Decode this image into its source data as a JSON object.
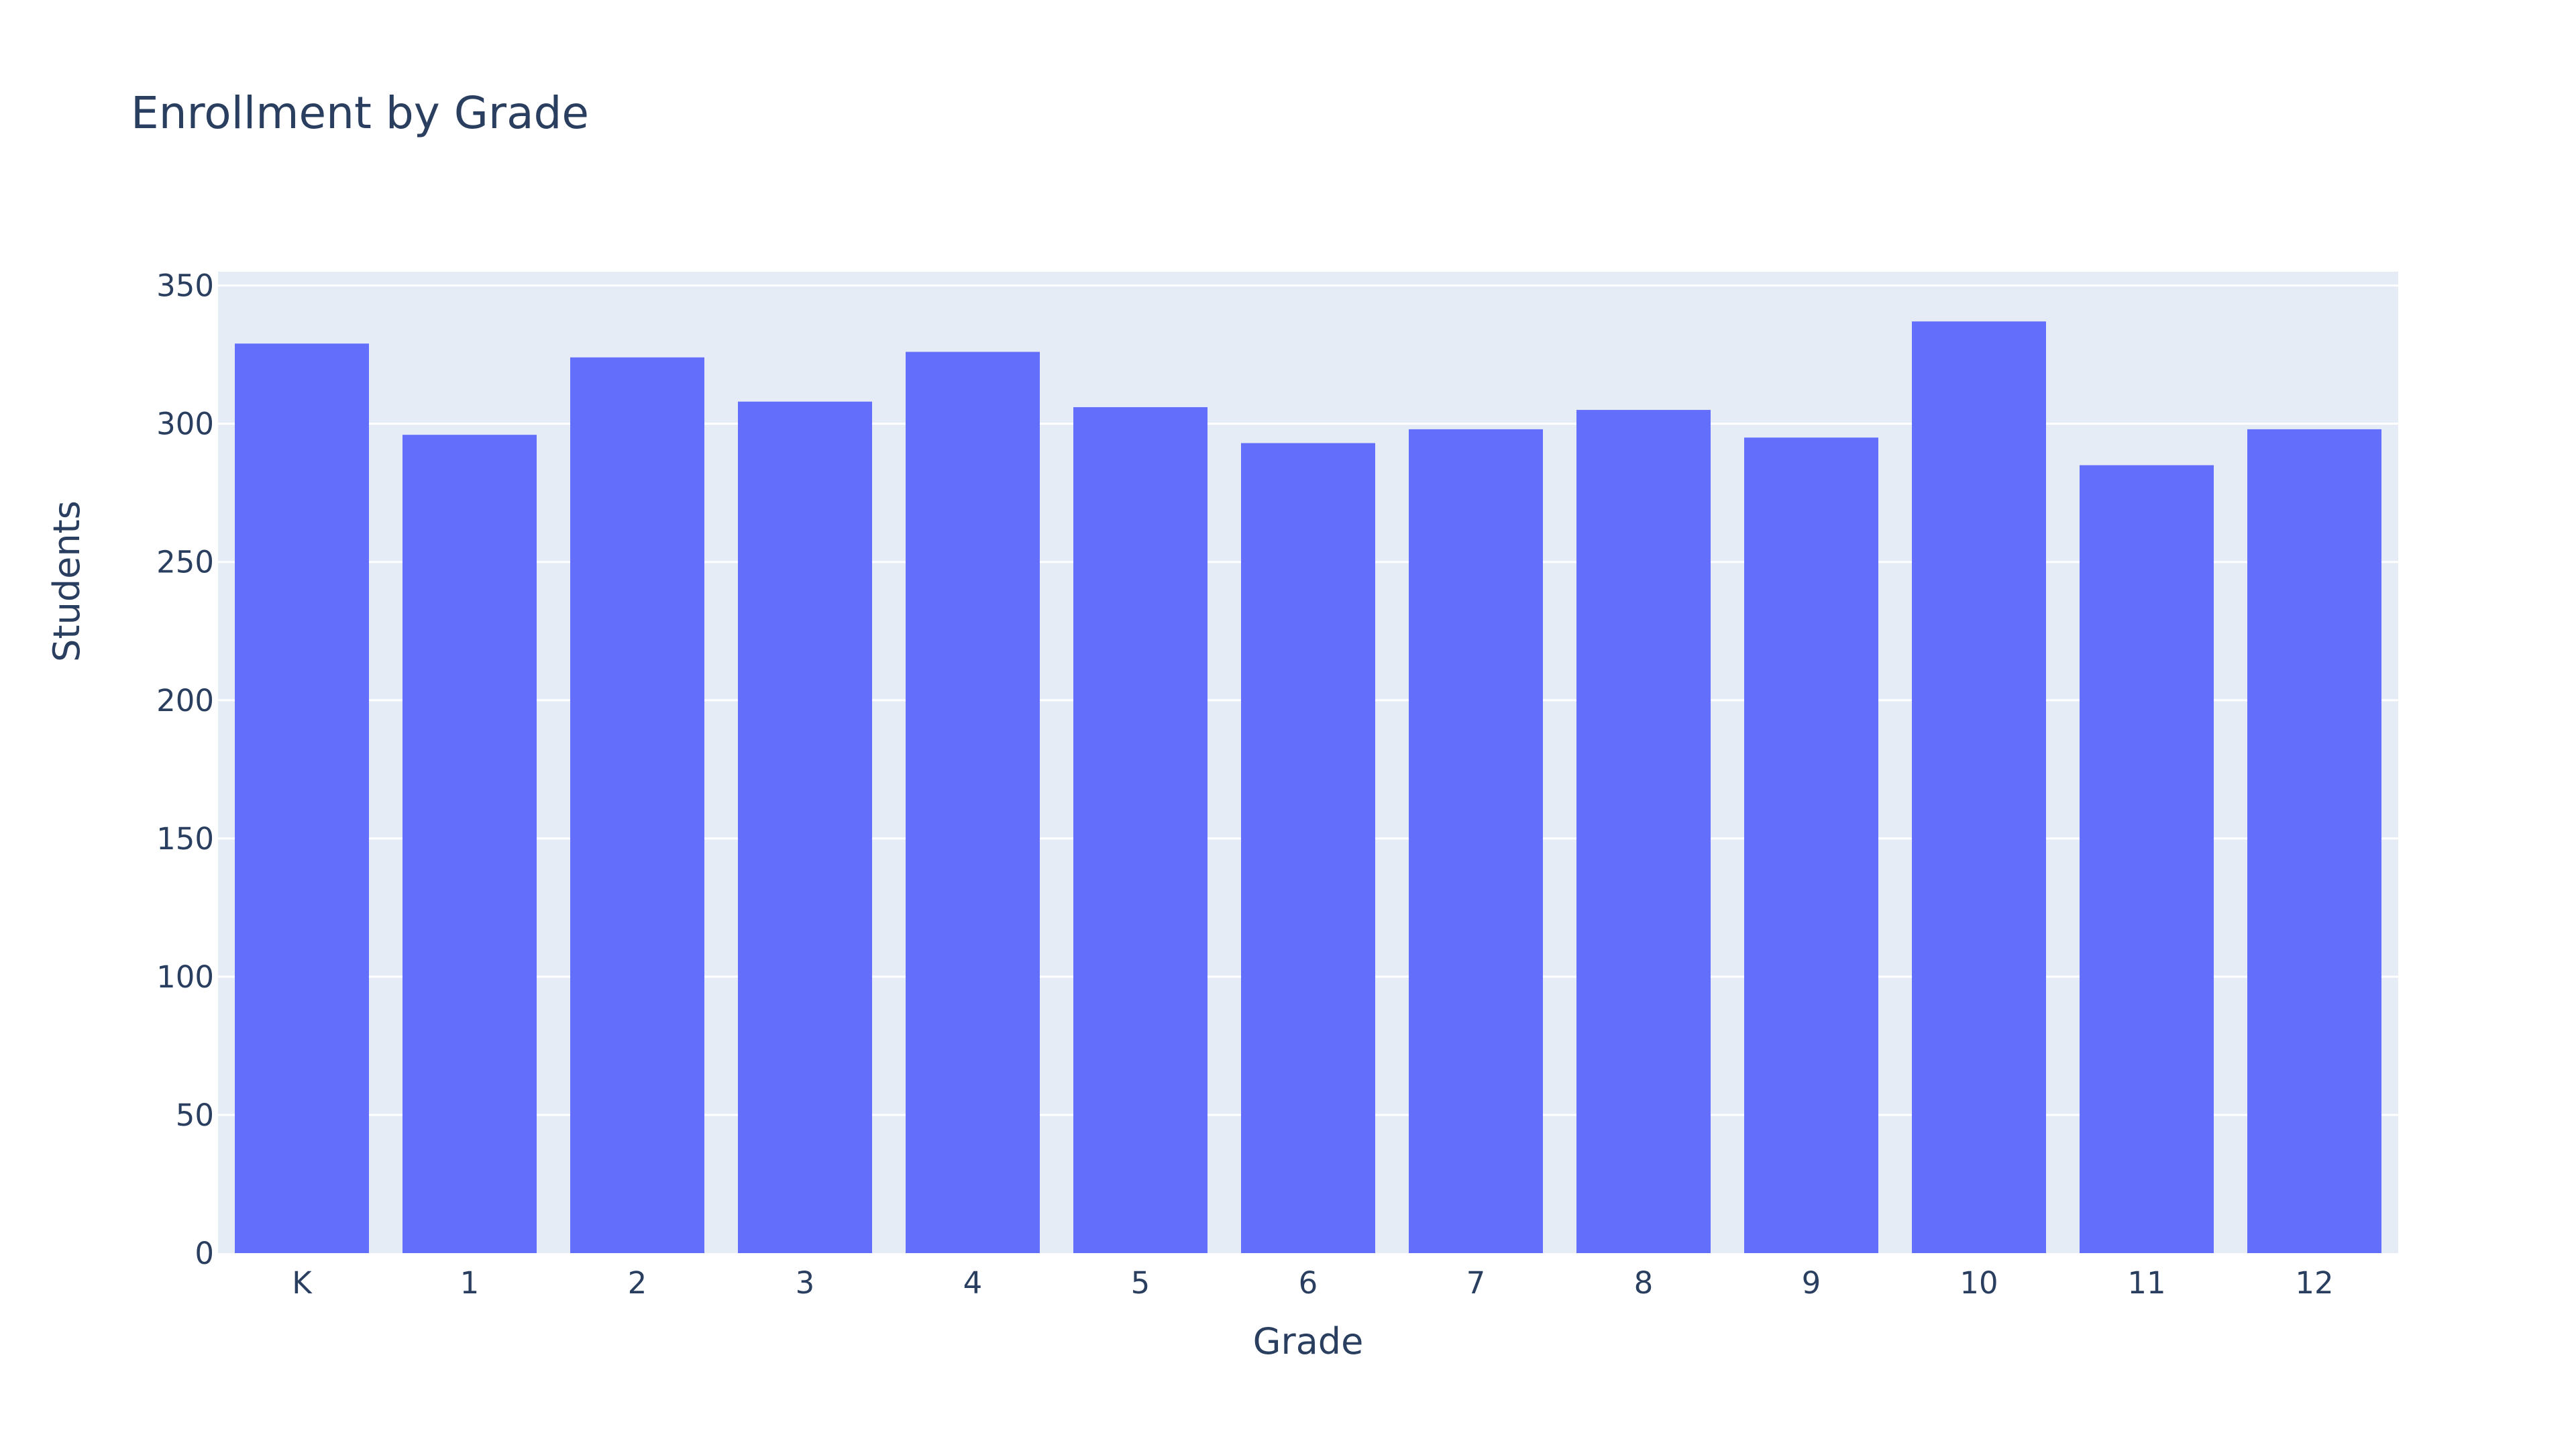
{
  "chart_data": {
    "type": "bar",
    "title": "Enrollment by Grade",
    "xlabel": "Grade",
    "ylabel": "Students",
    "categories": [
      "K",
      "1",
      "2",
      "3",
      "4",
      "5",
      "6",
      "7",
      "8",
      "9",
      "10",
      "11",
      "12"
    ],
    "values": [
      329,
      296,
      324,
      308,
      326,
      306,
      293,
      298,
      305,
      295,
      337,
      285,
      298
    ],
    "ylim": [
      0,
      355
    ],
    "yticks": [
      0,
      50,
      100,
      150,
      200,
      250,
      300,
      350
    ],
    "grid": true,
    "legend": "none",
    "colors": {
      "bar": "#636efa",
      "plot_background": "#e5ecf6",
      "gridline": "#ffffff",
      "text": "#2a3f5f"
    }
  }
}
